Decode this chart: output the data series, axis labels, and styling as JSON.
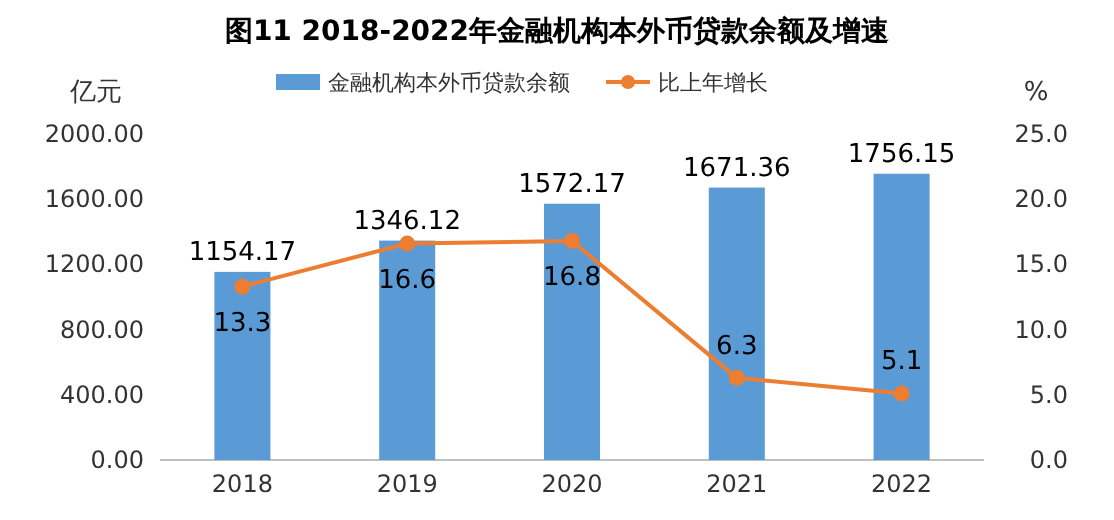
{
  "chart_data": {
    "type": "bar",
    "title": "图11  2018-2022年金融机构本外币贷款余额及增速",
    "ylabel": "亿元",
    "y2label": "%",
    "categories": [
      "2018",
      "2019",
      "2020",
      "2021",
      "2022"
    ],
    "series": [
      {
        "name": "金融机构本外币贷款余额",
        "color": "#5b9bd5",
        "values": [
          1154.17,
          1346.12,
          1572.17,
          1671.36,
          1756.15
        ]
      },
      {
        "name": "比上年增长",
        "type": "line",
        "axis": "y2",
        "color": "#ed7d31",
        "marker": "circle",
        "values": [
          13.3,
          16.6,
          16.8,
          6.3,
          5.1
        ]
      }
    ],
    "ylim": [
      0,
      2000
    ],
    "yticks": [
      {
        "value": 0,
        "label": "0.00"
      },
      {
        "value": 400,
        "label": "400.00"
      },
      {
        "value": 800,
        "label": "800.00"
      },
      {
        "value": 1200,
        "label": "1200.00"
      },
      {
        "value": 1600,
        "label": "1600.00"
      },
      {
        "value": 2000,
        "label": "2000.00"
      }
    ],
    "y2lim": [
      0,
      25
    ],
    "y2ticks": [
      {
        "value": 0,
        "label": "0.0"
      },
      {
        "value": 5,
        "label": "5.0"
      },
      {
        "value": 10,
        "label": "10.0"
      },
      {
        "value": 15,
        "label": "15.0"
      },
      {
        "value": 20,
        "label": "20.0"
      },
      {
        "value": 25,
        "label": "25.0"
      }
    ],
    "legend": "top",
    "data_labels": true
  }
}
